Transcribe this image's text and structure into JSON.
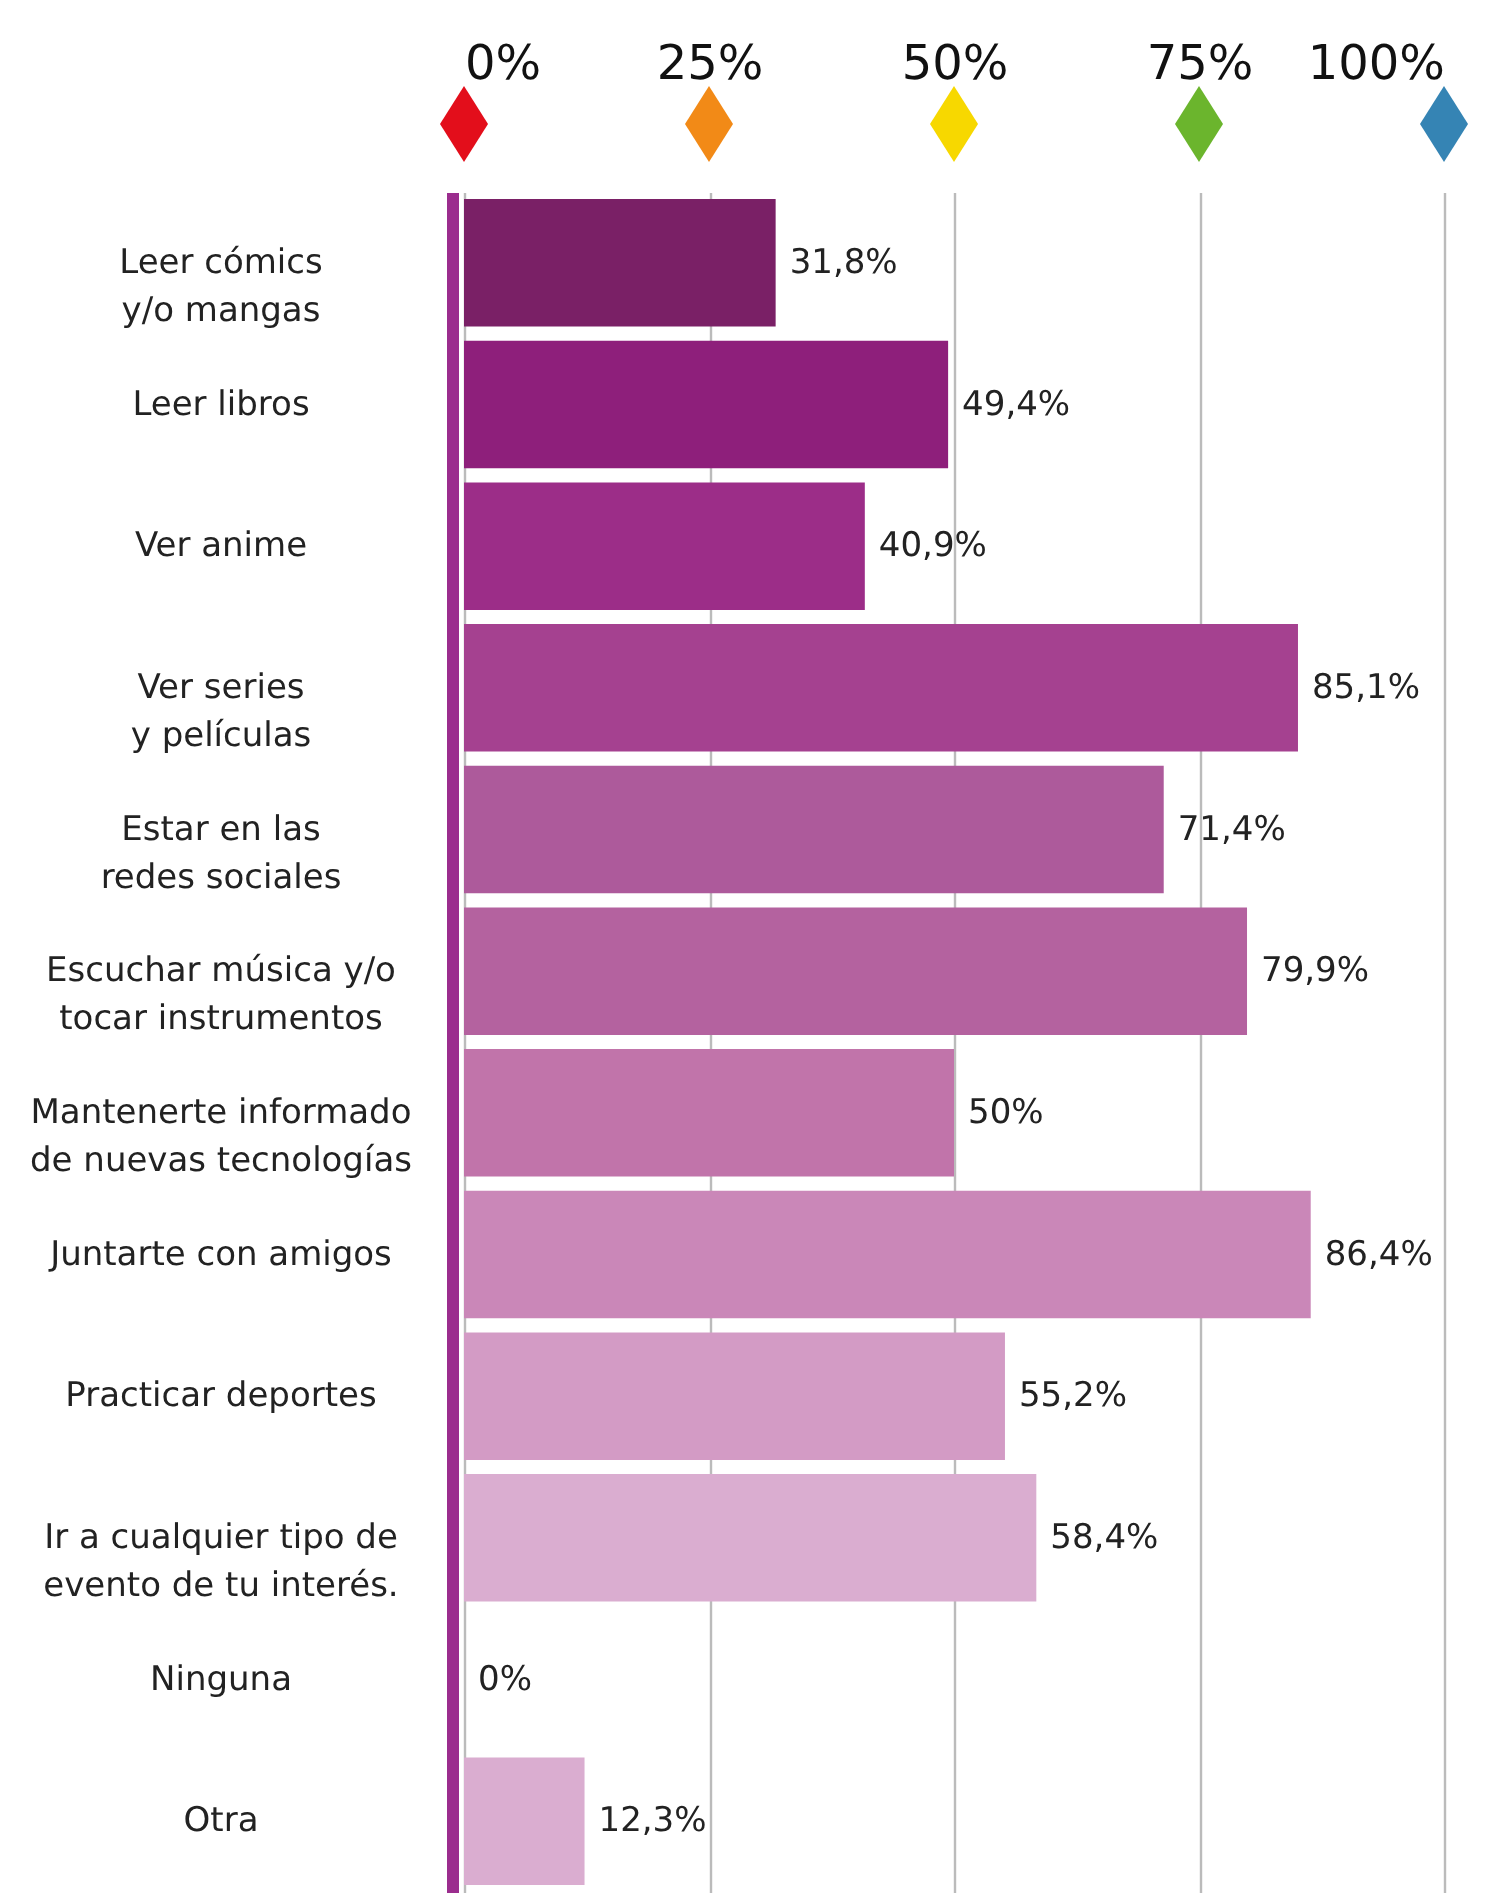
{
  "chart_data": {
    "type": "bar",
    "orientation": "horizontal",
    "categories": [
      "Leer cómics\ny/o mangas",
      "Leer libros",
      "Ver anime",
      "Ver series\ny películas",
      "Estar en las\nredes sociales",
      "Escuchar música y/o\ntocar instrumentos",
      "Mantenerte informado\nde nuevas tecnologías",
      "Juntarte con amigos",
      "Practicar deportes",
      "Ir a cualquier tipo de\nevento de tu interés.",
      "Ninguna",
      "Otra"
    ],
    "values": [
      31.8,
      49.4,
      40.9,
      85.1,
      71.4,
      79.9,
      50,
      86.4,
      55.2,
      58.4,
      0,
      12.3
    ],
    "value_labels": [
      "31,8%",
      "49,4%",
      "40,9%",
      "85,1%",
      "71,4%",
      "79,9%",
      "50%",
      "86,4%",
      "55,2%",
      "58,4%",
      "0%",
      "12,3%"
    ],
    "colors": [
      "#7a2066",
      "#8e1f7b",
      "#9c2d88",
      "#a54190",
      "#ad5a9b",
      "#b4629f",
      "#c174aa",
      "#ca87b8",
      "#d39bc5",
      "#daadd0",
      "#daadd0",
      "#daadd0"
    ],
    "xlim": [
      0,
      100
    ],
    "xticks": [
      {
        "value": 0,
        "label": "0%"
      },
      {
        "value": 25,
        "label": "25%"
      },
      {
        "value": 50,
        "label": "50%"
      },
      {
        "value": 75,
        "label": "75%"
      },
      {
        "value": 100,
        "label": "100%"
      }
    ],
    "grid": "x",
    "legend": false
  }
}
